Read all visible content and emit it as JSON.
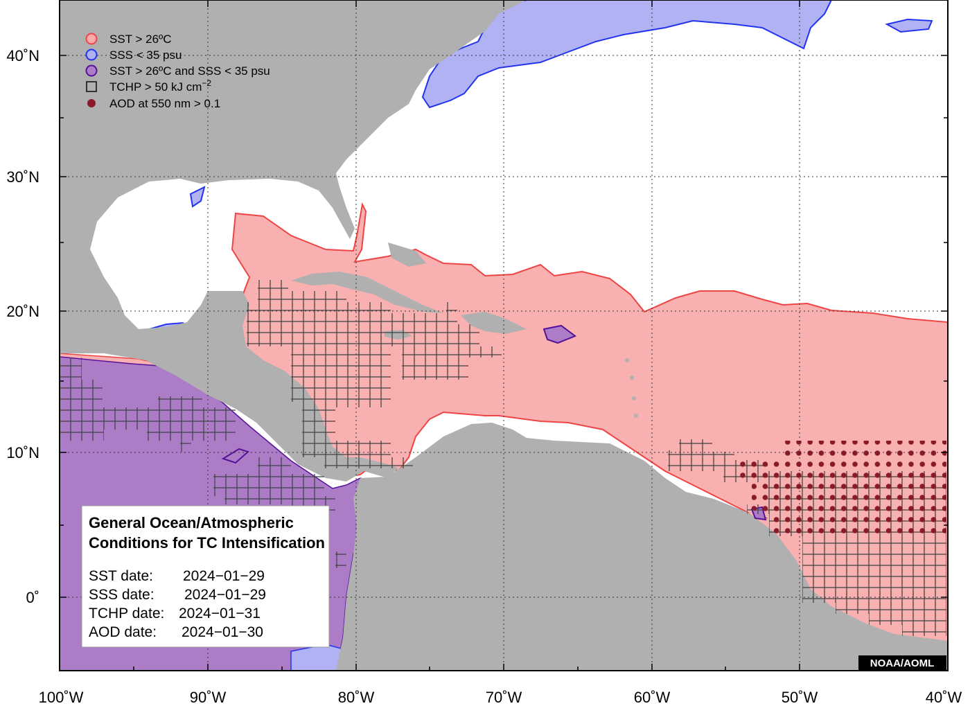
{
  "map": {
    "lon_range": [
      -100,
      -40
    ],
    "lat_range": [
      -5,
      44
    ],
    "x_ticks": [
      "100˚W",
      "90˚W",
      "80˚W",
      "70˚W",
      "60˚W",
      "50˚W",
      "40˚W"
    ],
    "y_ticks": [
      "40˚N",
      "30˚N",
      "20˚N",
      "10˚N",
      "0˚"
    ],
    "grid": "dotted",
    "credit": "NOAA/AOML"
  },
  "legend": {
    "position": "top-left",
    "items": [
      {
        "label": "SST > 26ºC",
        "symbol": "circle",
        "fill": "#f8a9a9",
        "stroke": "#ee4444"
      },
      {
        "label": "SSS < 35 psu",
        "symbol": "circle",
        "fill": "#aeb0f2",
        "stroke": "#2233ee"
      },
      {
        "label": "SST > 26ºC and SSS < 35 psu",
        "symbol": "circle",
        "fill": "#ac7cc7",
        "stroke": "#551199"
      },
      {
        "label": "TCHP > 50 kJ cm",
        "label_sup": "−2",
        "symbol": "square",
        "fill": "none",
        "stroke": "#333333"
      },
      {
        "label": "AOD at 550 nm > 0.1",
        "symbol": "dot",
        "fill": "#8a1a2a",
        "stroke": "#8a1a2a"
      }
    ]
  },
  "info_box": {
    "title_line1": "General Ocean/Atmospheric",
    "title_line2": "Conditions for TC Intensification",
    "lines": [
      {
        "label": "SST date:",
        "value": "2024−01−29"
      },
      {
        "label": "SSS date:",
        "value": "2024−01−29"
      },
      {
        "label": "TCHP date:",
        "value": "2024−01−31"
      },
      {
        "label": "AOD date:",
        "value": "2024−01−30"
      }
    ]
  },
  "colors": {
    "land": "#b0b0b0",
    "ocean": "#ffffff",
    "sst": "#f8b0b0",
    "sst_edge": "#ee4444",
    "sss": "#b0b2f4",
    "sss_edge": "#2233ee",
    "both": "#ac7cc7",
    "both_edge": "#551199",
    "tchp": "#444444",
    "aod": "#8a1a2a"
  }
}
